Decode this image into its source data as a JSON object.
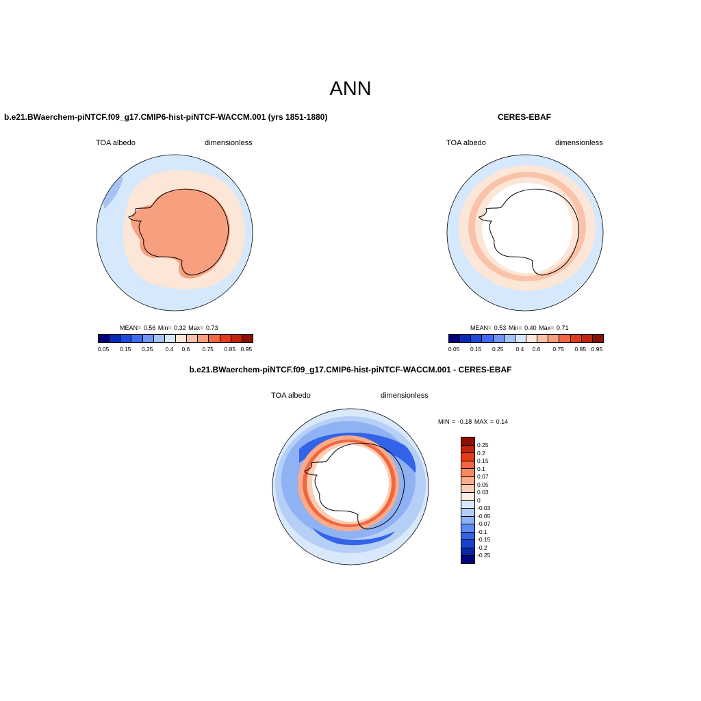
{
  "title": "ANN",
  "chart_data": [
    {
      "type": "heatmap",
      "title": "b.e21.BWaerchem-piNTCF.f09_g17.CMIP6-hist-piNTCF-WACCM.001 (yrs 1851-1880)",
      "left_label": "TOA albedo",
      "right_label": "dimensionless",
      "stats": {
        "mean_label": "MEAN=",
        "mean": "0.56",
        "min_label": "Min=",
        "min": "0.32",
        "max_label": "Max=",
        "max": "0.73"
      },
      "colorbar": {
        "ticks": [
          "0.05",
          "0.15",
          "0.25",
          "0.4",
          "0.6",
          "0.75",
          "0.85",
          "0.95"
        ],
        "colors": [
          "#00007e",
          "#0a2bb8",
          "#1c49e0",
          "#3e6bf2",
          "#7096f5",
          "#a7c3f6",
          "#d6e8fb",
          "#fce6d8",
          "#fac3a9",
          "#f7a07f",
          "#f2673f",
          "#e33b17",
          "#c0240d",
          "#8d0f04"
        ]
      }
    },
    {
      "type": "heatmap",
      "title": "CERES-EBAF",
      "left_label": "TOA albedo",
      "right_label": "dimensionless",
      "stats": {
        "mean_label": "MEAN=",
        "mean": "0.53",
        "min_label": "Min=",
        "min": "0.40",
        "max_label": "Max=",
        "max": "0.71"
      },
      "colorbar": {
        "ticks": [
          "0.05",
          "0.15",
          "0.25",
          "0.4",
          "0.6",
          "0.75",
          "0.85",
          "0.95"
        ],
        "colors": [
          "#00007e",
          "#0a2bb8",
          "#1c49e0",
          "#3e6bf2",
          "#7096f5",
          "#a7c3f6",
          "#d6e8fb",
          "#fce6d8",
          "#fac3a9",
          "#f7a07f",
          "#f2673f",
          "#e33b17",
          "#c0240d",
          "#8d0f04"
        ]
      }
    },
    {
      "type": "heatmap",
      "title": "b.e21.BWaerchem-piNTCF.f09_g17.CMIP6-hist-piNTCF-WACCM.001 - CERES-EBAF",
      "left_label": "TOA albedo",
      "right_label": "dimensionless",
      "stats": {
        "min_label": "MIN =",
        "min": "-0.18",
        "max_label": "MAX =",
        "max": "0.14"
      },
      "colorbar": {
        "ticks": [
          "0.25",
          "0.2",
          "0.15",
          "0.1",
          "0.07",
          "0.05",
          "0.03",
          "0",
          "-0.03",
          "-0.05",
          "-0.07",
          "-0.1",
          "-0.15",
          "-0.2",
          "-0.25"
        ],
        "colors": [
          "#8d0f04",
          "#c0240d",
          "#e33b17",
          "#f2673f",
          "#f7895e",
          "#f9ab8a",
          "#fbcdb3",
          "#fdeee4",
          "#d9e9fb",
          "#b6cff7",
          "#8fb2f4",
          "#5e8af3",
          "#3364e8",
          "#1a40d0",
          "#0a25a8",
          "#00057e"
        ]
      }
    }
  ]
}
